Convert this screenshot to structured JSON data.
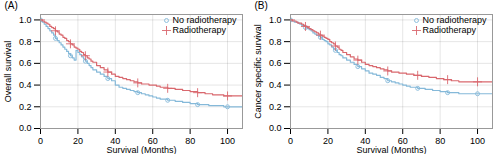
{
  "chart_data": [
    {
      "type": "step",
      "title": "(A)",
      "x_label": "Survival (Months)",
      "y_label": "Overall survival",
      "x": [
        0,
        1,
        2,
        3,
        4,
        5,
        6,
        7,
        8,
        9,
        10,
        11,
        12,
        13,
        14,
        15,
        16,
        17,
        18,
        19,
        20,
        21,
        22,
        23,
        24,
        25,
        26,
        27,
        28,
        30,
        32,
        34,
        36,
        38,
        40,
        42,
        44,
        46,
        48,
        50,
        52,
        54,
        56,
        58,
        60,
        62,
        64,
        66,
        68,
        70,
        72,
        74,
        76,
        78,
        80,
        82,
        84,
        86,
        88,
        90,
        92,
        94,
        96,
        98,
        100,
        102,
        104,
        106,
        108
      ],
      "series": [
        {
          "name": "No radiotherapy",
          "color": "#85b9d9",
          "marker": "circle",
          "values": [
            1.0,
            0.98,
            0.96,
            0.94,
            0.92,
            0.9,
            0.88,
            0.86,
            0.83,
            0.81,
            0.79,
            0.77,
            0.75,
            0.73,
            0.71,
            0.69,
            0.67,
            0.65,
            0.63,
            0.72,
            0.7,
            0.68,
            0.66,
            0.64,
            0.62,
            0.6,
            0.58,
            0.56,
            0.54,
            0.52,
            0.5,
            0.48,
            0.46,
            0.44,
            0.4,
            0.38,
            0.37,
            0.36,
            0.35,
            0.34,
            0.33,
            0.32,
            0.31,
            0.3,
            0.29,
            0.28,
            0.27,
            0.27,
            0.26,
            0.26,
            0.25,
            0.25,
            0.24,
            0.24,
            0.23,
            0.23,
            0.22,
            0.22,
            0.22,
            0.21,
            0.21,
            0.21,
            0.21,
            0.2,
            0.2,
            0.2,
            0.2,
            0.2,
            0.2
          ]
        },
        {
          "name": "Radiotherapy",
          "color": "#d9686e",
          "marker": "plus",
          "values": [
            1.0,
            0.99,
            0.98,
            0.97,
            0.96,
            0.94,
            0.93,
            0.92,
            0.9,
            0.89,
            0.87,
            0.86,
            0.84,
            0.83,
            0.81,
            0.8,
            0.78,
            0.77,
            0.75,
            0.74,
            0.73,
            0.71,
            0.7,
            0.68,
            0.67,
            0.65,
            0.64,
            0.62,
            0.61,
            0.58,
            0.56,
            0.54,
            0.52,
            0.5,
            0.48,
            0.47,
            0.46,
            0.45,
            0.44,
            0.43,
            0.42,
            0.41,
            0.41,
            0.4,
            0.4,
            0.39,
            0.38,
            0.38,
            0.37,
            0.37,
            0.36,
            0.36,
            0.35,
            0.35,
            0.34,
            0.34,
            0.33,
            0.33,
            0.32,
            0.32,
            0.31,
            0.31,
            0.31,
            0.3,
            0.3,
            0.3,
            0.3,
            0.3,
            0.3
          ]
        }
      ],
      "xlim": [
        0,
        108
      ],
      "xticks": [
        0,
        20,
        40,
        60,
        80,
        100
      ],
      "ylim": [
        0.0,
        1.05
      ],
      "yticks": [
        {
          "value": 0.0,
          "label": "0.0"
        },
        0.2,
        0.4,
        0.6,
        0.8,
        {
          "value": 1.0,
          "label": "1.0"
        }
      ],
      "grid": true,
      "legend": "upper right"
    },
    {
      "type": "step",
      "title": "(B)",
      "x_label": "Survival (Months)",
      "y_label": "Cancer specific survival",
      "x": [
        0,
        1,
        2,
        3,
        4,
        5,
        6,
        7,
        8,
        9,
        10,
        11,
        12,
        13,
        14,
        15,
        16,
        17,
        18,
        19,
        20,
        21,
        22,
        23,
        24,
        25,
        26,
        27,
        28,
        30,
        32,
        34,
        36,
        38,
        40,
        42,
        44,
        46,
        48,
        50,
        52,
        54,
        56,
        58,
        60,
        62,
        64,
        66,
        68,
        70,
        72,
        74,
        76,
        78,
        80,
        82,
        84,
        86,
        88,
        90,
        92,
        94,
        96,
        98,
        100,
        102,
        104,
        106,
        108
      ],
      "series": [
        {
          "name": "No radiotherapy",
          "color": "#85b9d9",
          "marker": "circle",
          "values": [
            1.0,
            0.99,
            0.98,
            0.98,
            0.97,
            0.96,
            0.95,
            0.94,
            0.93,
            0.92,
            0.91,
            0.9,
            0.88,
            0.87,
            0.86,
            0.85,
            0.84,
            0.82,
            0.81,
            0.8,
            0.78,
            0.77,
            0.75,
            0.73,
            0.72,
            0.7,
            0.68,
            0.67,
            0.65,
            0.63,
            0.61,
            0.59,
            0.57,
            0.55,
            0.53,
            0.51,
            0.5,
            0.49,
            0.47,
            0.46,
            0.44,
            0.43,
            0.42,
            0.41,
            0.4,
            0.39,
            0.38,
            0.38,
            0.37,
            0.37,
            0.36,
            0.36,
            0.35,
            0.35,
            0.34,
            0.34,
            0.33,
            0.33,
            0.33,
            0.32,
            0.32,
            0.32,
            0.32,
            0.32,
            0.32,
            0.32,
            0.32,
            0.32,
            0.32
          ]
        },
        {
          "name": "Radiotherapy",
          "color": "#d9686e",
          "marker": "plus",
          "values": [
            1.0,
            0.99,
            0.99,
            0.98,
            0.97,
            0.97,
            0.96,
            0.95,
            0.94,
            0.93,
            0.92,
            0.91,
            0.9,
            0.89,
            0.88,
            0.87,
            0.86,
            0.85,
            0.84,
            0.83,
            0.82,
            0.8,
            0.79,
            0.78,
            0.76,
            0.75,
            0.73,
            0.72,
            0.7,
            0.68,
            0.66,
            0.64,
            0.63,
            0.61,
            0.59,
            0.58,
            0.57,
            0.56,
            0.55,
            0.54,
            0.53,
            0.52,
            0.52,
            0.51,
            0.51,
            0.5,
            0.5,
            0.49,
            0.49,
            0.48,
            0.48,
            0.47,
            0.47,
            0.46,
            0.46,
            0.45,
            0.45,
            0.44,
            0.44,
            0.43,
            0.43,
            0.43,
            0.43,
            0.43,
            0.43,
            0.43,
            0.43,
            0.43,
            0.43
          ]
        }
      ],
      "xlim": [
        0,
        108
      ],
      "xticks": [
        0,
        20,
        40,
        60,
        80,
        100
      ],
      "ylim": [
        0.0,
        1.05
      ],
      "yticks": [
        {
          "value": 0.0,
          "label": "0.0"
        },
        0.2,
        0.4,
        0.6,
        0.8,
        {
          "value": 1.0,
          "label": "1.0"
        }
      ],
      "grid": true,
      "legend": "upper right"
    }
  ]
}
